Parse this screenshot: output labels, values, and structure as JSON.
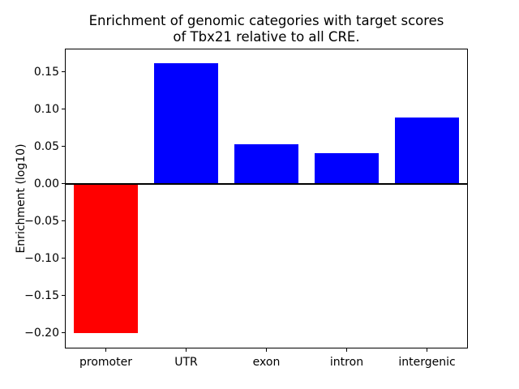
{
  "figure": {
    "background": "#ffffff",
    "text_color": "#000000"
  },
  "chart_data": {
    "type": "bar",
    "title": "Enrichment of genomic categories with target scores\nof Tbx21 relative to all CRE.",
    "xlabel": "",
    "ylabel": "Enrichment (log10)",
    "categories": [
      "promoter",
      "UTR",
      "exon",
      "intron",
      "intergenic"
    ],
    "values": [
      -0.2,
      0.162,
      0.053,
      0.041,
      0.089
    ],
    "bar_colors": [
      "#ff0000",
      "#0000ff",
      "#0000ff",
      "#0000ff",
      "#0000ff"
    ],
    "yticks": [
      0.15,
      0.1,
      0.05,
      0.0,
      -0.05,
      -0.1,
      -0.15,
      -0.2
    ],
    "ytick_labels": [
      "0.15",
      "0.10",
      "0.05",
      "0.00",
      "−0.05",
      "−0.10",
      "−0.15",
      "−0.20"
    ],
    "ylim": [
      -0.22,
      0.18
    ],
    "grid": false,
    "legend": null,
    "zero_line": true,
    "bar_width_fraction": 0.8,
    "axis_color": "#000000"
  }
}
